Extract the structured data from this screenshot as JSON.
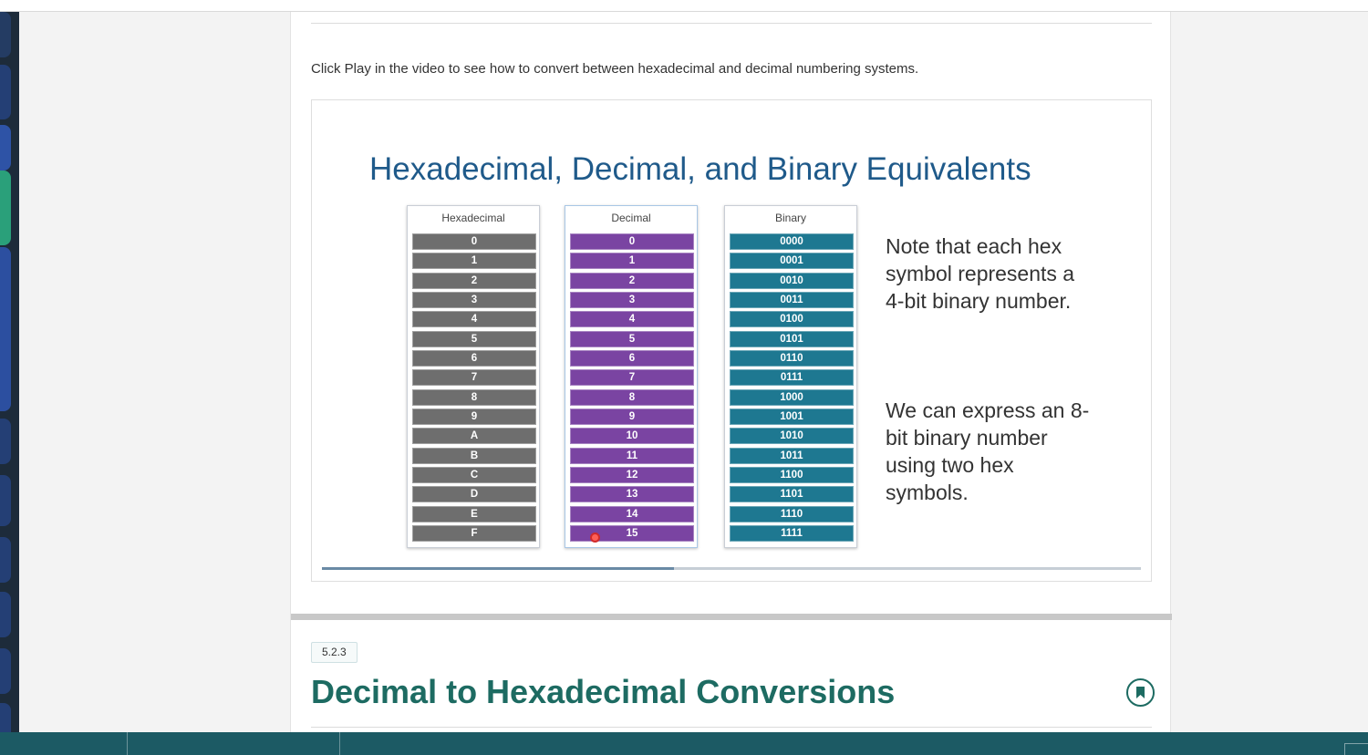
{
  "intro": {
    "text": "Click Play in the video to see how to convert between hexadecimal and decimal numbering systems."
  },
  "video": {
    "slide_title": "Hexadecimal, Decimal, and Binary Equivalents",
    "columns": {
      "hex_header": "Hexadecimal",
      "dec_header": "Decimal",
      "bin_header": "Binary"
    },
    "hex_values": [
      "0",
      "1",
      "2",
      "3",
      "4",
      "5",
      "6",
      "7",
      "8",
      "9",
      "A",
      "B",
      "C",
      "D",
      "E",
      "F"
    ],
    "dec_values": [
      "0",
      "1",
      "2",
      "3",
      "4",
      "5",
      "6",
      "7",
      "8",
      "9",
      "10",
      "11",
      "12",
      "13",
      "14",
      "15"
    ],
    "bin_values": [
      "0000",
      "0001",
      "0010",
      "0011",
      "0100",
      "0101",
      "0110",
      "0111",
      "1000",
      "1001",
      "1010",
      "1011",
      "1100",
      "1101",
      "1110",
      "1111"
    ],
    "note_1": "Note that each hex symbol represents a 4-bit binary number.",
    "note_2": "We can express an 8-bit binary number using two hex symbols.",
    "progress_fraction": 0.43,
    "colors": {
      "hex_cell": "#6e6e6e",
      "dec_cell": "#7a44a2",
      "bin_cell": "#1e7891",
      "title": "#1f5a8a"
    }
  },
  "section": {
    "number": "5.2.3",
    "title": "Decimal to Hexadecimal Conversions",
    "bookmark_icon": "bookmark-icon",
    "accent_color": "#1d6b62"
  },
  "taskbar": {
    "items": [
      "",
      ""
    ]
  }
}
